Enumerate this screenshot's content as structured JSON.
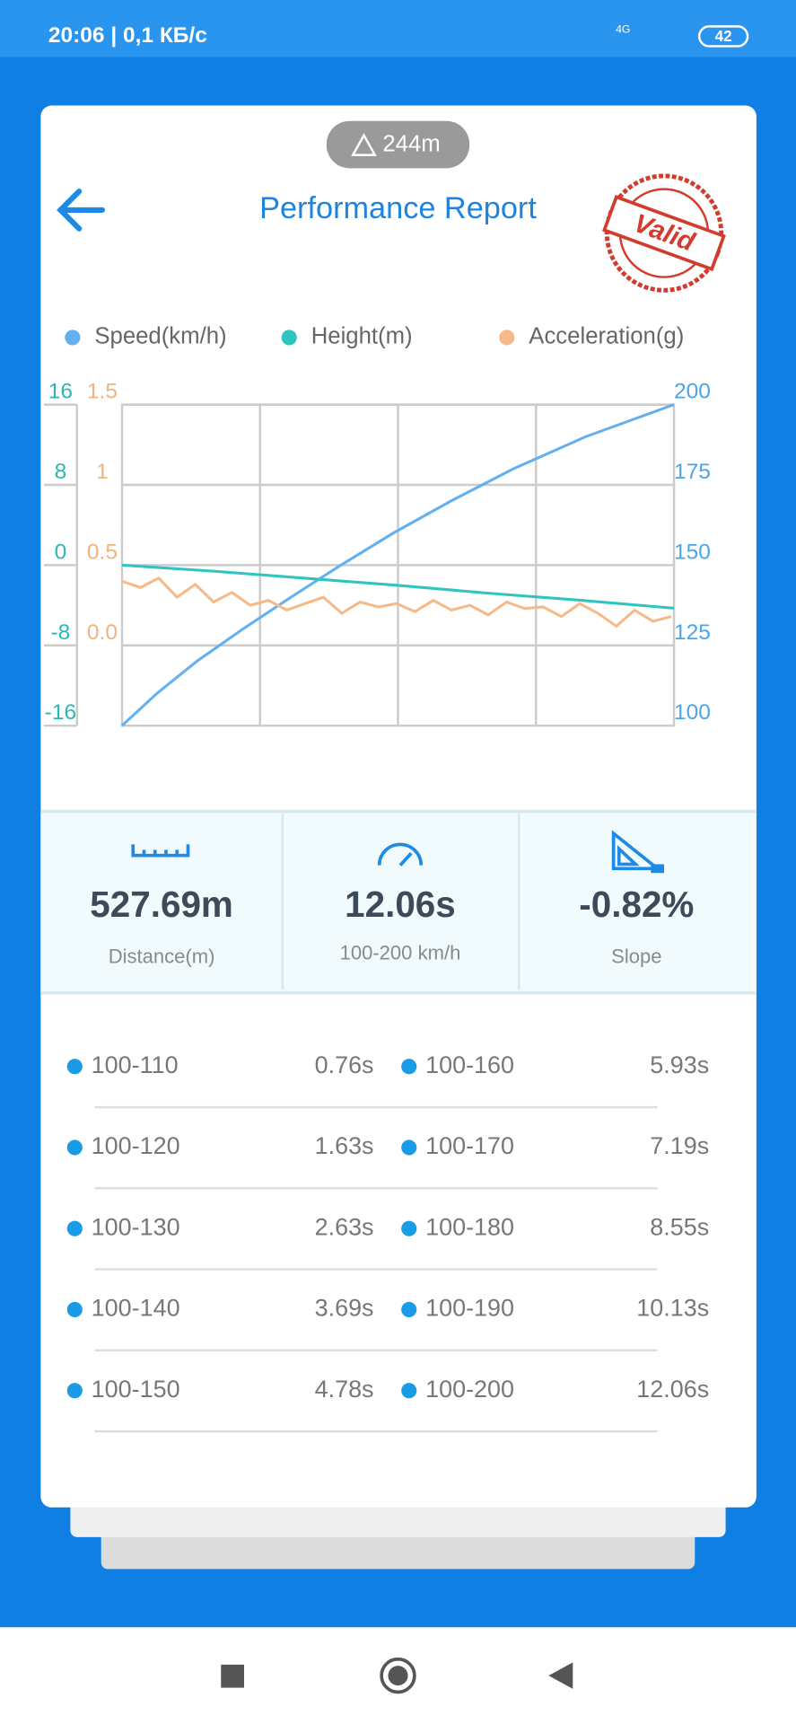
{
  "status_bar": {
    "time": "20:06 | 0,1 КБ/с",
    "network": "4G",
    "battery": "42"
  },
  "altitude": "244m",
  "title": "Performance Report",
  "stamp": "Valid",
  "chart_data": {
    "type": "line",
    "xlim": [
      0,
      12.06
    ],
    "ylim": [
      -16,
      16
    ],
    "yticks": [
      -16,
      -8,
      0,
      8,
      16
    ],
    "y2lim": [
      100,
      200
    ],
    "y2ticks": [
      100,
      125,
      150,
      175,
      200
    ],
    "y3lim": [
      -0.5,
      1.5
    ],
    "y3ticks": [
      {
        "value": 0,
        "label": "0.0"
      },
      0.5,
      1,
      1.5
    ],
    "grid": true,
    "series": [
      {
        "name": "Speed(km/h)",
        "color": "#64b0ee",
        "axis": "y2",
        "x": [
          0,
          0.76,
          1.63,
          2.63,
          3.69,
          4.78,
          5.93,
          7.19,
          8.55,
          10.13,
          12.06
        ],
        "values": [
          100,
          110,
          120,
          130,
          140,
          150,
          160,
          170,
          180,
          190,
          200
        ]
      },
      {
        "name": "Height(m)",
        "color": "#2ec4c0",
        "axis": "y",
        "x": [
          0,
          2,
          4,
          6,
          8,
          10,
          12.06
        ],
        "values": [
          0,
          -0.6,
          -1.3,
          -2.0,
          -2.8,
          -3.5,
          -4.3
        ]
      },
      {
        "name": "Acceleration(g)",
        "color": "#f6b988",
        "axis": "y3",
        "x": [
          0,
          0.4,
          0.8,
          1.2,
          1.6,
          2,
          2.4,
          2.8,
          3.2,
          3.6,
          4,
          4.4,
          4.8,
          5.2,
          5.6,
          6,
          6.4,
          6.8,
          7.2,
          7.6,
          8,
          8.4,
          8.8,
          9.2,
          9.6,
          10,
          10.4,
          10.8,
          11.2,
          11.6,
          12
        ],
        "values": [
          0.4,
          0.36,
          0.42,
          0.3,
          0.38,
          0.27,
          0.33,
          0.25,
          0.28,
          0.22,
          0.26,
          0.3,
          0.2,
          0.27,
          0.24,
          0.26,
          0.21,
          0.28,
          0.22,
          0.25,
          0.19,
          0.27,
          0.23,
          0.24,
          0.18,
          0.26,
          0.2,
          0.12,
          0.22,
          0.15,
          0.18
        ]
      }
    ]
  },
  "stats": [
    {
      "value": "527.69m",
      "label": "Distance(m)"
    },
    {
      "value": "12.06s",
      "label": "100-200 km/h"
    },
    {
      "value": "-0.82%",
      "label": "Slope"
    }
  ],
  "splits": {
    "rows": [
      [
        {
          "label": "100-110",
          "time": "0.76s"
        },
        {
          "label": "100-160",
          "time": "5.93s"
        }
      ],
      [
        {
          "label": "100-120",
          "time": "1.63s"
        },
        {
          "label": "100-170",
          "time": "7.19s"
        }
      ],
      [
        {
          "label": "100-130",
          "time": "2.63s"
        },
        {
          "label": "100-180",
          "time": "8.55s"
        }
      ],
      [
        {
          "label": "100-140",
          "time": "3.69s"
        },
        {
          "label": "100-190",
          "time": "10.13s"
        }
      ],
      [
        {
          "label": "100-150",
          "time": "4.78s"
        },
        {
          "label": "100-200",
          "time": "12.06s"
        }
      ]
    ]
  }
}
